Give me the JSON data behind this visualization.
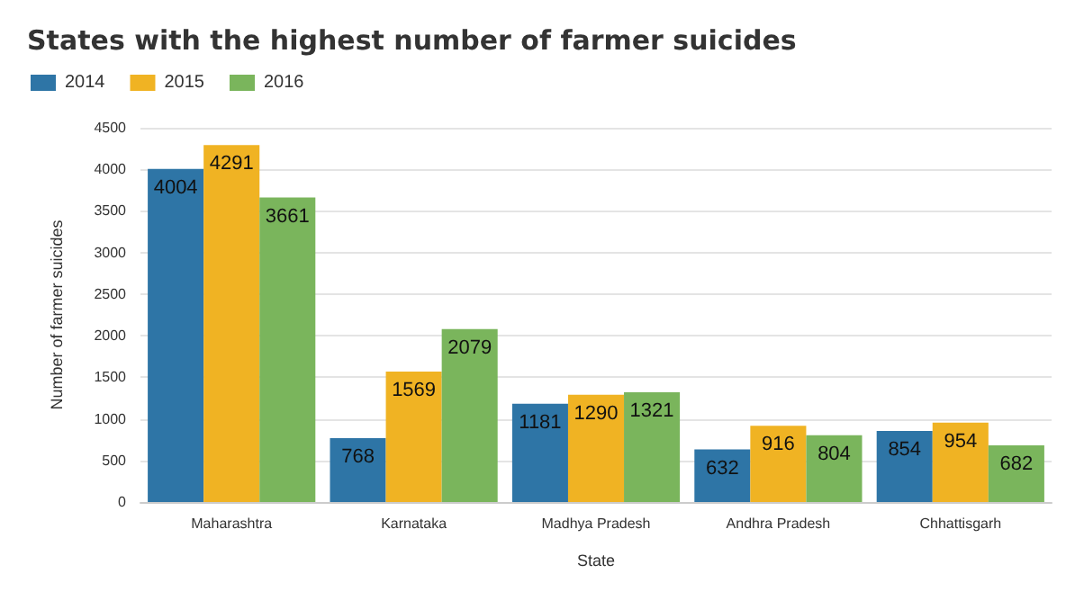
{
  "chart_data": {
    "type": "bar",
    "title": "States with the highest number of farmer suicides",
    "xlabel": "State",
    "ylabel": "Number of farmer suicides",
    "categories": [
      "Maharashtra",
      "Karnataka",
      "Madhya Pradesh",
      "Andhra Pradesh",
      "Chhattisgarh"
    ],
    "series": [
      {
        "name": "2014",
        "color": "#2e75a6",
        "values": [
          4004,
          768,
          1181,
          632,
          854
        ]
      },
      {
        "name": "2015",
        "color": "#f0b323",
        "values": [
          4291,
          1569,
          1290,
          916,
          954
        ]
      },
      {
        "name": "2016",
        "color": "#7ab55c",
        "values": [
          3661,
          2079,
          1321,
          804,
          682
        ]
      }
    ],
    "ylim": [
      0,
      4500
    ],
    "yticks": [
      0,
      500,
      1000,
      1500,
      2000,
      2500,
      3000,
      3500,
      4000,
      4500
    ],
    "grid": "y",
    "legend": "top left",
    "data_labels": true
  }
}
